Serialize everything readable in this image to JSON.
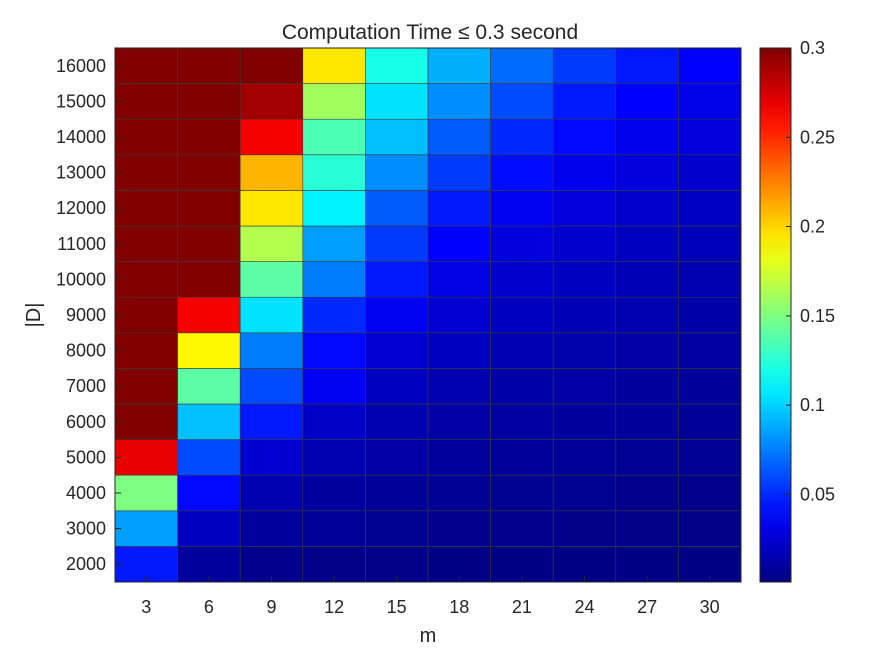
{
  "chart_data": {
    "type": "heatmap",
    "title": "Computation Time  ≤ 0.3 second",
    "xlabel": "m",
    "ylabel": "|D|",
    "x": [
      3,
      6,
      9,
      12,
      15,
      18,
      21,
      24,
      27,
      30
    ],
    "y": [
      2000,
      3000,
      4000,
      5000,
      6000,
      7000,
      8000,
      9000,
      10000,
      11000,
      12000,
      13000,
      14000,
      15000,
      16000
    ],
    "values": [
      [
        0.045,
        0.01,
        0.005,
        0.004,
        0.004,
        0.003,
        0.003,
        0.003,
        0.003,
        0.003
      ],
      [
        0.085,
        0.02,
        0.01,
        0.008,
        0.006,
        0.005,
        0.005,
        0.004,
        0.004,
        0.004
      ],
      [
        0.15,
        0.04,
        0.015,
        0.01,
        0.008,
        0.007,
        0.006,
        0.006,
        0.005,
        0.005
      ],
      [
        0.27,
        0.06,
        0.025,
        0.015,
        0.012,
        0.01,
        0.009,
        0.008,
        0.007,
        0.007
      ],
      [
        0.3,
        0.095,
        0.045,
        0.022,
        0.015,
        0.012,
        0.011,
        0.01,
        0.009,
        0.008
      ],
      [
        0.3,
        0.14,
        0.06,
        0.035,
        0.02,
        0.015,
        0.013,
        0.012,
        0.01,
        0.009
      ],
      [
        0.3,
        0.19,
        0.075,
        0.04,
        0.025,
        0.02,
        0.016,
        0.014,
        0.012,
        0.011
      ],
      [
        0.3,
        0.265,
        0.105,
        0.05,
        0.035,
        0.025,
        0.02,
        0.017,
        0.015,
        0.013
      ],
      [
        0.3,
        0.3,
        0.14,
        0.075,
        0.045,
        0.03,
        0.024,
        0.02,
        0.017,
        0.015
      ],
      [
        0.3,
        0.3,
        0.165,
        0.085,
        0.055,
        0.038,
        0.028,
        0.024,
        0.02,
        0.018
      ],
      [
        0.3,
        0.3,
        0.195,
        0.11,
        0.065,
        0.045,
        0.035,
        0.028,
        0.024,
        0.021
      ],
      [
        0.3,
        0.3,
        0.21,
        0.125,
        0.08,
        0.055,
        0.042,
        0.033,
        0.028,
        0.024
      ],
      [
        0.3,
        0.3,
        0.265,
        0.135,
        0.095,
        0.065,
        0.05,
        0.04,
        0.033,
        0.028
      ],
      [
        0.3,
        0.3,
        0.29,
        0.16,
        0.105,
        0.08,
        0.06,
        0.046,
        0.038,
        0.032
      ],
      [
        0.3,
        0.3,
        0.3,
        0.195,
        0.12,
        0.09,
        0.07,
        0.055,
        0.045,
        0.038
      ]
    ],
    "colorbar": {
      "colormap": "jet",
      "range": [
        0.001,
        0.3
      ],
      "ticks": [
        0.05,
        0.1,
        0.15,
        0.2,
        0.25,
        0.3
      ],
      "tick_labels": [
        "0.05",
        "0.1",
        "0.15",
        "0.2",
        "0.25",
        "0.3"
      ]
    },
    "grid": true,
    "colors": {
      "axis": "#262626",
      "cell_border": "#3a3a3a"
    }
  }
}
